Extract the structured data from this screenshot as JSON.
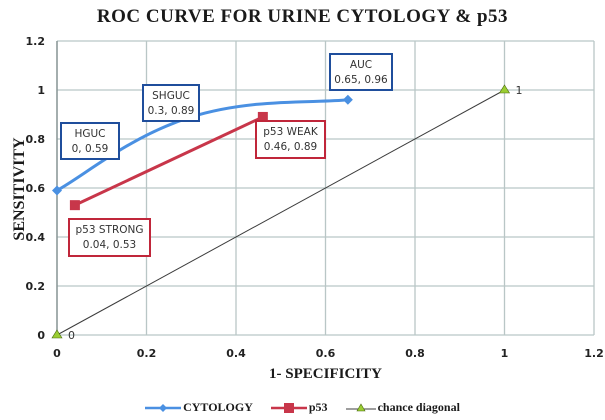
{
  "chart_data": {
    "type": "line",
    "title": "ROC CURVE FOR URINE CYTOLOGY & p53",
    "xlabel": "1- SPECIFICITY",
    "ylabel": "SENSITIVITY",
    "xlim": [
      0,
      1.2
    ],
    "ylim": [
      0,
      1.2
    ],
    "xticks": [
      "0",
      "0.2",
      "0.4",
      "0.6",
      "0.8",
      "1",
      "1.2"
    ],
    "yticks": [
      "0",
      "0.2",
      "0.4",
      "0.6",
      "0.8",
      "1",
      "1.2"
    ],
    "grid": true,
    "legend_position": "bottom",
    "series": [
      {
        "name": "CYTOLOGY",
        "color": "#4a90e2",
        "marker": "diamond",
        "smooth": true,
        "points": [
          [
            0,
            0.59
          ],
          [
            0.3,
            0.89
          ],
          [
            0.65,
            0.96
          ]
        ]
      },
      {
        "name": "p53",
        "color": "#c8364a",
        "marker": "square",
        "smooth": false,
        "points": [
          [
            0.04,
            0.53
          ],
          [
            0.46,
            0.89
          ]
        ]
      },
      {
        "name": "chance diagonal",
        "color": "#3c3c3c",
        "marker": "triangle",
        "marker_color": "#9acd32",
        "smooth": false,
        "points": [
          [
            0,
            0
          ],
          [
            1,
            1
          ]
        ]
      }
    ],
    "annotations": [
      {
        "series": "CYTOLOGY",
        "title": "HGUC",
        "value": "0, 0.59",
        "border": "#1f4e9c"
      },
      {
        "series": "CYTOLOGY",
        "title": "SHGUC",
        "value": "0.3, 0.89",
        "border": "#1f4e9c"
      },
      {
        "series": "CYTOLOGY",
        "title": "AUC",
        "value": "0.65, 0.96",
        "border": "#1f4e9c"
      },
      {
        "series": "p53",
        "title": "p53 STRONG",
        "value": "0.04, 0.53",
        "border": "#c0263a"
      },
      {
        "series": "p53",
        "title": "p53 WEAK",
        "value": "0.46, 0.89",
        "border": "#c0263a"
      }
    ],
    "point_labels": [
      {
        "series": "chance diagonal",
        "text": "0"
      },
      {
        "series": "chance diagonal",
        "text": "1"
      }
    ]
  }
}
